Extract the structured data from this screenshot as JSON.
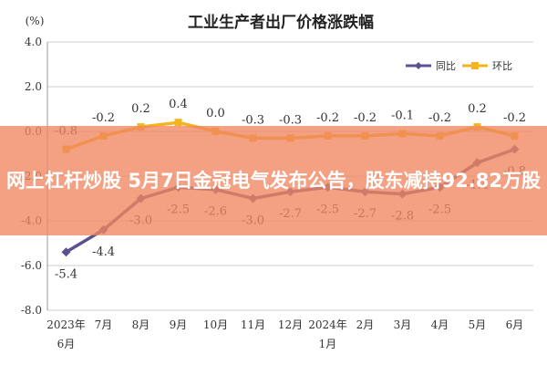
{
  "chart_data": {
    "type": "line",
    "title": "工业生产者出厂价格涨跌幅",
    "unit_label": "(%)",
    "ylim": [
      -8.0,
      4.0
    ],
    "yticks": [
      "4.0",
      "2.0",
      "0.0",
      "-2.0",
      "-4.0",
      "-6.0",
      "-8.0"
    ],
    "categories": [
      "2023年6月",
      "7月",
      "8月",
      "9月",
      "10月",
      "11月",
      "12月",
      "2024年1月",
      "2月",
      "3月",
      "4月",
      "5月",
      "6月"
    ],
    "grid": true,
    "legend_position": "top-right",
    "series": [
      {
        "name": "同比",
        "color": "#5b5190",
        "marker": "diamond",
        "values": [
          -5.4,
          -4.4,
          -3.0,
          -2.5,
          -2.6,
          -3.0,
          -2.7,
          -2.5,
          -2.7,
          -2.8,
          -2.5,
          -1.4,
          -0.8
        ],
        "labels": [
          "-5.4",
          "-4.4",
          "-3.0",
          "-2.5",
          "-2.6",
          "-3.0",
          "-2.7",
          "-2.5",
          "-2.7",
          "-2.8",
          "-2.5",
          "-1.4",
          "-0.8"
        ]
      },
      {
        "name": "环比",
        "color": "#f2b420",
        "marker": "square",
        "values": [
          -0.8,
          -0.2,
          0.2,
          0.4,
          0.0,
          -0.3,
          -0.3,
          -0.2,
          -0.2,
          -0.1,
          -0.2,
          0.2,
          -0.2
        ],
        "labels": [
          "-0.8",
          "-0.2",
          "0.2",
          "0.4",
          "0.0",
          "-0.3",
          "-0.3",
          "-0.2",
          "-0.2",
          "-0.1",
          "-0.2",
          "0.2",
          "-0.2"
        ]
      }
    ]
  },
  "overlay": {
    "headline": "网上杠杆炒股 5月7日金冠电气发布公告，股东减持92.82万股",
    "color": "#f0875f"
  }
}
